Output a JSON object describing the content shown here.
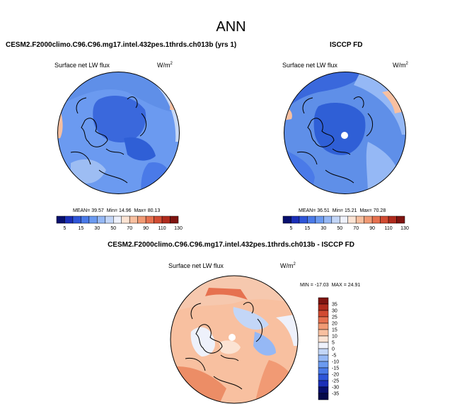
{
  "figure": {
    "title": "ANN"
  },
  "panels": [
    {
      "id": "model",
      "heading": "CESM2.F2000climo.C96.C96.mg17.intel.432pes.1thrds.ch013b (yrs 1)",
      "variable": "Surface net LW flux",
      "units": "W/m",
      "units_exp": "2",
      "stats": {
        "mean_label": "MEAN=",
        "mean": "39.57",
        "min_label": "Min=",
        "min": "14.96",
        "max_label": "Max=",
        "max": "80.13"
      }
    },
    {
      "id": "obs",
      "heading": "ISCCP FD",
      "variable": "Surface net LW flux",
      "units": "W/m",
      "units_exp": "2",
      "stats": {
        "mean_label": "MEAN=",
        "mean": "36.51",
        "min_label": "Min=",
        "min": "15.21",
        "max_label": "Max=",
        "max": "70.28"
      }
    },
    {
      "id": "diff",
      "heading": "CESM2.F2000climo.C96.C96.mg17.intel.432pes.1thrds.ch013b - ISCCP FD",
      "variable": "Surface net LW flux",
      "units": "W/m",
      "units_exp": "2",
      "minmax": {
        "min_label": "MIN =",
        "min": "-17.03",
        "max_label": "MAX =",
        "max": "24.91"
      }
    }
  ],
  "colorbar_abs": {
    "labels": [
      "5",
      "15",
      "30",
      "50",
      "70",
      "90",
      "110",
      "130"
    ],
    "colors": [
      "#08106e",
      "#1b2fb8",
      "#2e55d8",
      "#4a7ae8",
      "#6b9af0",
      "#95b8f5",
      "#c3d6f7",
      "#eef1fb",
      "#fbe3d3",
      "#f8c0a0",
      "#f19a74",
      "#e6714f",
      "#d14b32",
      "#b02b1d",
      "#7f1410"
    ]
  },
  "colorbar_diff": {
    "labels": [
      "35",
      "30",
      "25",
      "20",
      "15",
      "10",
      "5",
      "0",
      "-5",
      "-10",
      "-15",
      "-20",
      "-25",
      "-30",
      "-35"
    ],
    "colors": [
      "#7f1410",
      "#b02b1d",
      "#d14b32",
      "#e6714f",
      "#f19a74",
      "#f8c0a0",
      "#fbe3d3",
      "#eef1fb",
      "#c3d6f7",
      "#95b8f5",
      "#6b9af0",
      "#4a7ae8",
      "#2e55d8",
      "#1b2fb8",
      "#08106e",
      "#050a4a"
    ]
  },
  "colors": {
    "deep_blue": "#2f5fd6",
    "mid_blue": "#5f8fe8",
    "light_blue": "#9dbdf3",
    "pale": "#e9eefa",
    "light_red": "#f6bfa0",
    "mid_red": "#ec8d66",
    "coast": "#000000"
  }
}
